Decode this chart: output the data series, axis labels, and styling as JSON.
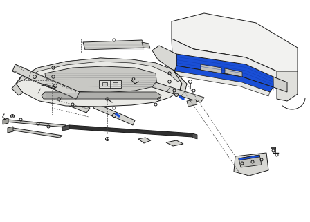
{
  "bg_color": "#ffffff",
  "line_color": "#1a1a1a",
  "blue_fill": "#1a4fd6",
  "light_fill": "#f0f0ee",
  "mid_fill": "#d8d8d4",
  "dark_fill": "#a0a09a",
  "dashed_color": "#444444",
  "fig_w": 4.48,
  "fig_h": 3.21,
  "dpi": 100
}
